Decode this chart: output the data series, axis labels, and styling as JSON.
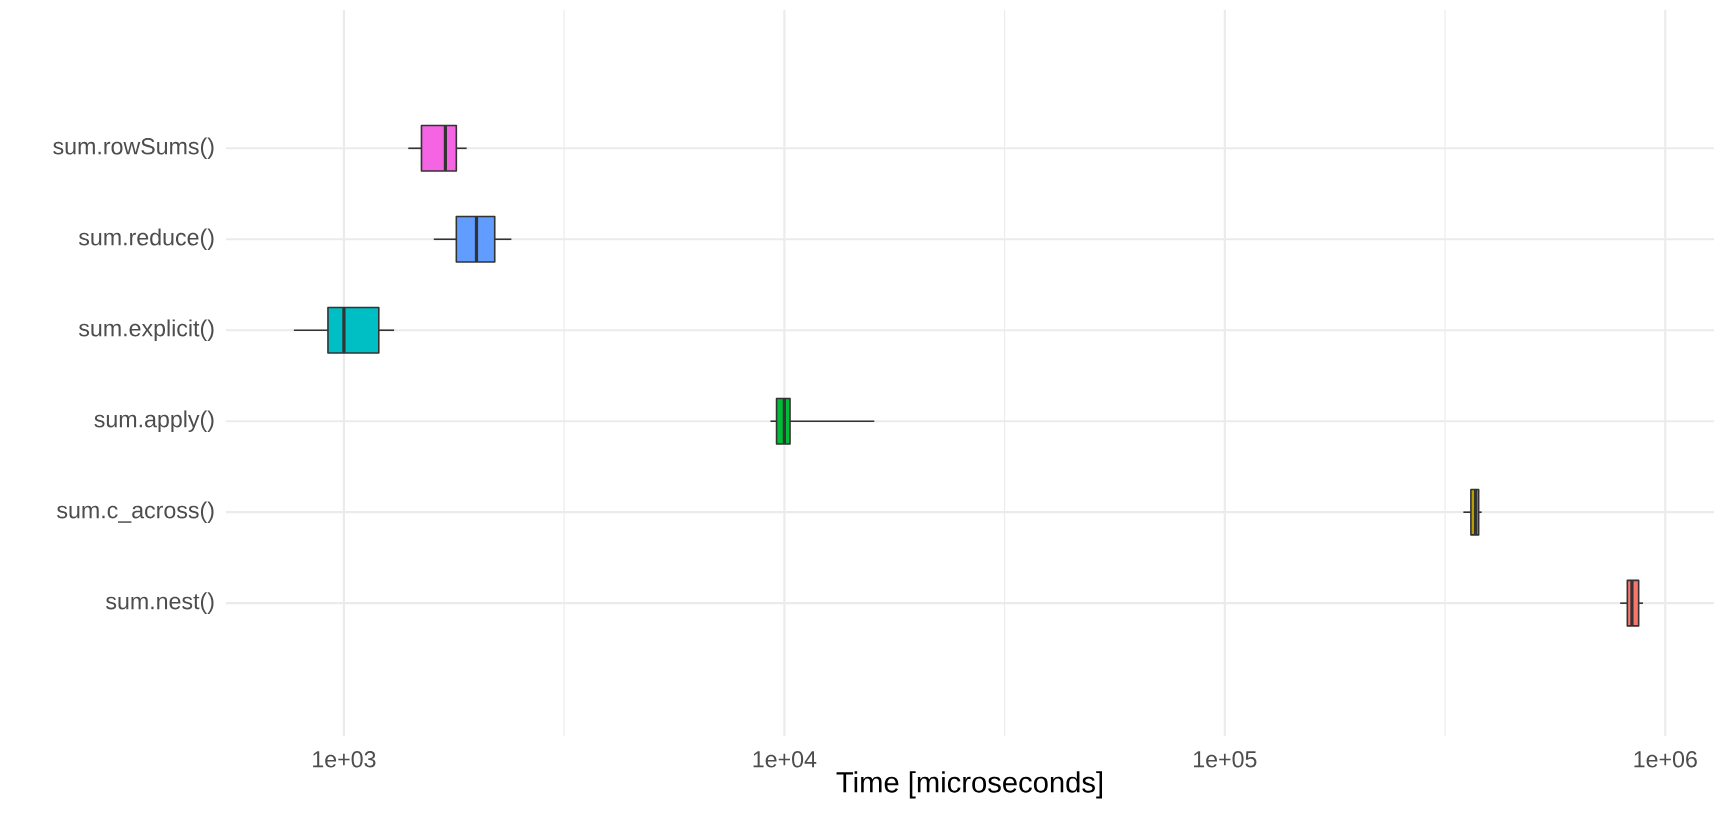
{
  "chart_data": {
    "type": "box",
    "orientation": "horizontal",
    "categories": [
      "sum.rowSums()",
      "sum.reduce()",
      "sum.explicit()",
      "sum.apply()",
      "sum.c_across()",
      "sum.nest()"
    ],
    "colors": [
      "#f564e3",
      "#619cff",
      "#00bfc4",
      "#00ba38",
      "#b79f00",
      "#f8766d"
    ],
    "boxes": [
      {
        "low": 1400,
        "q1": 1500,
        "median": 1700,
        "q3": 1800,
        "high": 1900
      },
      {
        "low": 1600,
        "q1": 1800,
        "median": 2000,
        "q3": 2200,
        "high": 2400
      },
      {
        "low": 770,
        "q1": 920,
        "median": 1000,
        "q3": 1200,
        "high": 1300
      },
      {
        "low": 9300,
        "q1": 9600,
        "median": 10000,
        "q3": 10300,
        "high": 16000
      },
      {
        "low": 348000,
        "q1": 362000,
        "median": 371000,
        "q3": 377000,
        "high": 383000
      },
      {
        "low": 790000,
        "q1": 820000,
        "median": 840000,
        "q3": 870000,
        "high": 890000
      }
    ],
    "xlabel": "Time [microseconds]",
    "log": "x",
    "xlim": [
      540,
      1290000
    ],
    "xticks": [
      {
        "value": 1000,
        "label": "1e+03"
      },
      {
        "value": 3162,
        "label": null
      },
      {
        "value": 10000,
        "label": "1e+04"
      },
      {
        "value": 31623,
        "label": null
      },
      {
        "value": 100000,
        "label": "1e+05"
      },
      {
        "value": 316228,
        "label": null
      },
      {
        "value": 1000000,
        "label": "1e+06"
      }
    ],
    "grid": true
  }
}
